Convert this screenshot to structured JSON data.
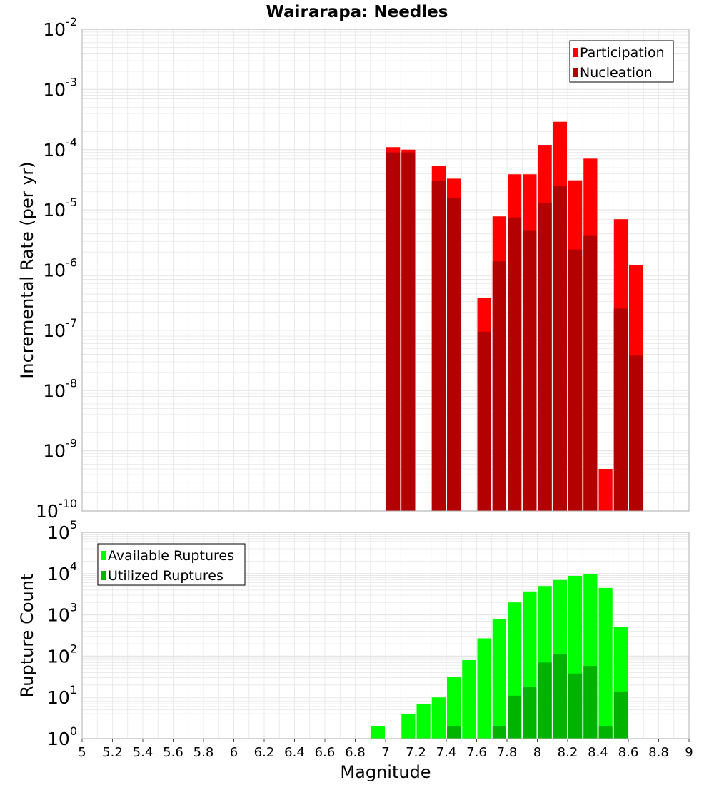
{
  "title": "Wairarapa: Needles",
  "colors": {
    "participation": "#ff0000",
    "nucleation": "#b30000",
    "available": "#00ff00",
    "utilized": "#00b300",
    "grid": "#e6e6e6",
    "frame": "#b0b0b0"
  },
  "chart_data": [
    {
      "type": "bar",
      "panel": "top",
      "ylabel": "Incremental Rate (per yr)",
      "yscale": "log",
      "ylim_exp": [
        -10,
        -2
      ],
      "xlim": [
        5,
        9
      ],
      "grid": true,
      "legend_placement": "top-right",
      "ytick_labels": [
        {
          "base": "10",
          "exp": "-10"
        },
        {
          "base": "10",
          "exp": "-9"
        },
        {
          "base": "10",
          "exp": "-8"
        },
        {
          "base": "10",
          "exp": "-7"
        },
        {
          "base": "10",
          "exp": "-6"
        },
        {
          "base": "10",
          "exp": "-5"
        },
        {
          "base": "10",
          "exp": "-4"
        },
        {
          "base": "10",
          "exp": "-3"
        },
        {
          "base": "10",
          "exp": "-2"
        }
      ],
      "x": [
        7.05,
        7.15,
        7.35,
        7.45,
        7.65,
        7.75,
        7.85,
        7.95,
        8.05,
        8.15,
        8.25,
        8.35,
        8.45,
        8.55,
        8.65
      ],
      "series": [
        {
          "name": "Participation",
          "color_key": "participation",
          "values": [
            0.00011,
            0.0001,
            5.3e-05,
            3.3e-05,
            3.5e-07,
            7.8e-06,
            3.9e-05,
            3.9e-05,
            0.00012,
            0.00029,
            3.1e-05,
            7.1e-05,
            5e-10,
            7e-06,
            1.2e-06
          ]
        },
        {
          "name": "Nucleation",
          "color_key": "nucleation",
          "values": [
            9e-05,
            9e-05,
            3e-05,
            1.6e-05,
            9.5e-08,
            1.4e-06,
            7.5e-06,
            4.6e-06,
            1.3e-05,
            2.5e-05,
            2.2e-06,
            3.8e-06,
            null,
            2.3e-07,
            3.8e-08
          ]
        }
      ]
    },
    {
      "type": "bar",
      "panel": "bottom",
      "xlabel": "Magnitude",
      "ylabel": "Rupture Count",
      "yscale": "log",
      "ylim_exp": [
        0,
        5
      ],
      "xlim": [
        5,
        9
      ],
      "grid": true,
      "legend_placement": "top-left",
      "ytick_labels": [
        {
          "base": "10",
          "exp": "0"
        },
        {
          "base": "10",
          "exp": "1"
        },
        {
          "base": "10",
          "exp": "2"
        },
        {
          "base": "10",
          "exp": "3"
        },
        {
          "base": "10",
          "exp": "4"
        },
        {
          "base": "10",
          "exp": "5"
        }
      ],
      "xtick_values": [
        5,
        5.2,
        5.4,
        5.6,
        5.8,
        6,
        6.2,
        6.4,
        6.6,
        6.8,
        7,
        7.2,
        7.4,
        7.6,
        7.8,
        8,
        8.2,
        8.4,
        8.6,
        8.8,
        9
      ],
      "xtick_labels": [
        "5",
        "5.2",
        "5.4",
        "5.6",
        "5.8",
        "6",
        "6.2",
        "6.4",
        "6.6",
        "6.8",
        "7",
        "7.2",
        "7.4",
        "7.6",
        "7.8",
        "8",
        "8.2",
        "8.4",
        "8.6",
        "8.8",
        "9"
      ],
      "x": [
        6.95,
        7.05,
        7.15,
        7.25,
        7.35,
        7.45,
        7.55,
        7.65,
        7.75,
        7.85,
        7.95,
        8.05,
        8.15,
        8.25,
        8.35,
        8.45,
        8.55,
        8.65
      ],
      "series": [
        {
          "name": "Available Ruptures",
          "color_key": "available",
          "values": [
            2,
            1,
            4,
            7,
            10,
            32,
            80,
            270,
            800,
            2000,
            3700,
            5000,
            7000,
            8800,
            9800,
            4500,
            500,
            1
          ]
        },
        {
          "name": "Utilized Ruptures",
          "color_key": "utilized",
          "values": [
            null,
            1,
            1,
            null,
            1,
            2,
            null,
            1,
            2,
            11,
            18,
            70,
            110,
            38,
            58,
            2,
            14,
            1
          ]
        }
      ]
    }
  ]
}
